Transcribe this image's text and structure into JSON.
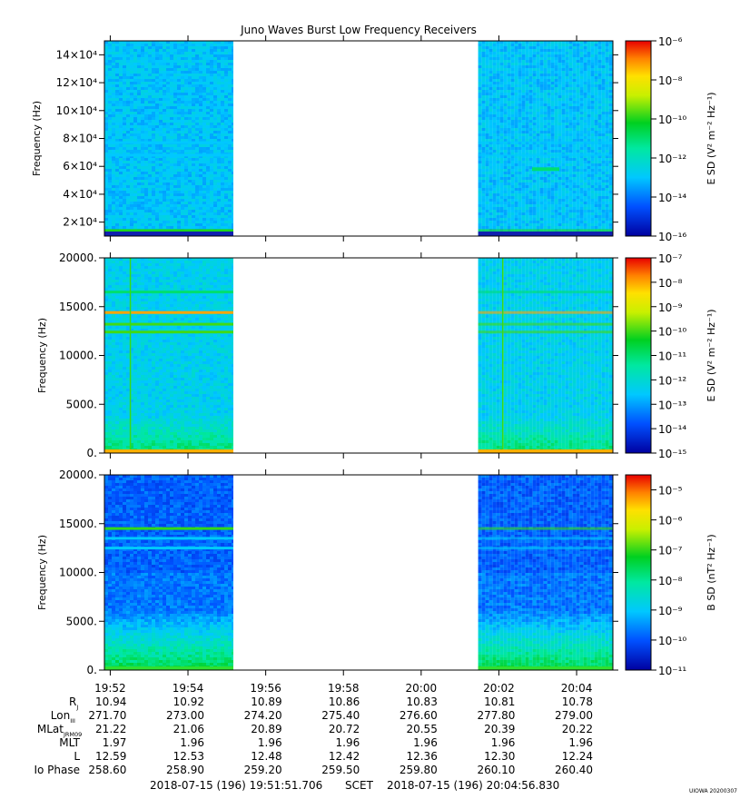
{
  "title": "Juno Waves Burst Low Frequency Receivers",
  "footer": {
    "start": "2018-07-15 (196) 19:51:51.706",
    "scet": "SCET",
    "end": "2018-07-15 (196) 20:04:56.830",
    "credit": "UIOWA 20200307"
  },
  "chart_data": [
    {
      "type": "heatmap",
      "panel": "top",
      "ylabel": "Frequency (Hz)",
      "yticks": [
        "14×10⁴",
        "12×10⁴",
        "10×10⁴",
        "8×10⁴",
        "6×10⁴",
        "4×10⁴",
        "2×10⁴"
      ],
      "ytick_values": [
        140000,
        120000,
        100000,
        80000,
        60000,
        40000,
        20000
      ],
      "ylim": [
        10000,
        150000
      ],
      "data_segments": [
        [
          "19:51:51",
          "19:55:10"
        ],
        [
          "20:01:28",
          "20:04:56"
        ]
      ],
      "features": [
        {
          "kind": "band",
          "freq": 14000,
          "level": "1e-10"
        },
        {
          "kind": "band",
          "freq": 68000,
          "level": "1e-13"
        },
        {
          "kind": "band",
          "freq": 77000,
          "level": "1e-13"
        },
        {
          "kind": "spot",
          "freq": 58000,
          "level": "1e-11"
        }
      ],
      "colorbar": {
        "label": "E SD (V² m⁻² Hz⁻¹)",
        "ticks": [
          "10⁻⁶",
          "10⁻⁸",
          "10⁻¹⁰",
          "10⁻¹²",
          "10⁻¹⁴",
          "10⁻¹⁶"
        ],
        "range": [
          -16,
          -6
        ]
      }
    },
    {
      "type": "heatmap",
      "panel": "middle",
      "ylabel": "Frequency (Hz)",
      "yticks": [
        "20000.",
        "15000.",
        "10000.",
        "5000.",
        "0."
      ],
      "ytick_values": [
        20000,
        15000,
        10000,
        5000,
        0
      ],
      "ylim": [
        0,
        20000
      ],
      "data_segments": [
        [
          "19:51:51",
          "19:55:10"
        ],
        [
          "20:01:28",
          "20:04:56"
        ]
      ],
      "features": [
        {
          "kind": "band",
          "freq": 14400,
          "level": "1e-8"
        },
        {
          "kind": "band",
          "freq": 13200,
          "level": "1e-10"
        },
        {
          "kind": "band",
          "freq": 12400,
          "level": "1e-10"
        },
        {
          "kind": "band",
          "freq": 16500,
          "level": "1e-11"
        },
        {
          "kind": "line_vertical",
          "time": "19:52:30"
        },
        {
          "kind": "line_vertical",
          "time": "20:02:05"
        }
      ],
      "colorbar": {
        "label": "E SD (V² m⁻² Hz⁻¹)",
        "ticks": [
          "10⁻⁷",
          "10⁻⁸",
          "10⁻⁹",
          "10⁻¹⁰",
          "10⁻¹¹",
          "10⁻¹²",
          "10⁻¹³",
          "10⁻¹⁴",
          "10⁻¹⁵"
        ],
        "range": [
          -15,
          -7
        ]
      }
    },
    {
      "type": "heatmap",
      "panel": "bottom",
      "ylabel": "Frequency (Hz)",
      "yticks": [
        "20000.",
        "15000.",
        "10000.",
        "5000.",
        "0."
      ],
      "ytick_values": [
        20000,
        15000,
        10000,
        5000,
        0
      ],
      "ylim": [
        0,
        20000
      ],
      "data_segments": [
        [
          "19:51:51",
          "19:55:10"
        ],
        [
          "20:01:28",
          "20:04:56"
        ]
      ],
      "features": [
        {
          "kind": "band",
          "freq": 14500,
          "level": "1e-7"
        },
        {
          "kind": "band",
          "freq": 13500,
          "level": "1e-9"
        },
        {
          "kind": "band",
          "freq": 12500,
          "level": "1e-9"
        }
      ],
      "colorbar": {
        "label": "B SD (nT² Hz⁻¹)",
        "ticks": [
          "10⁻⁵",
          "10⁻⁶",
          "10⁻⁷",
          "10⁻⁸",
          "10⁻⁹",
          "10⁻¹⁰",
          "10⁻¹¹"
        ],
        "range": [
          -11,
          -4.5
        ]
      }
    }
  ],
  "xaxis": {
    "ticks": [
      "19:52",
      "19:54",
      "19:56",
      "19:58",
      "20:00",
      "20:02",
      "20:04"
    ],
    "range": [
      "19:51:51",
      "20:04:56"
    ]
  },
  "ephemeris": {
    "labels": [
      "R",
      "Lon",
      "MLat",
      "MLT",
      "L",
      "Io Phase"
    ],
    "label_subs": [
      "J",
      "III",
      "JRM09",
      "",
      "",
      ""
    ],
    "rows": [
      [
        "10.94",
        "10.92",
        "10.89",
        "10.86",
        "10.83",
        "10.81",
        "10.78"
      ],
      [
        "271.70",
        "273.00",
        "274.20",
        "275.40",
        "276.60",
        "277.80",
        "279.00"
      ],
      [
        "21.22",
        "21.06",
        "20.89",
        "20.72",
        "20.55",
        "20.39",
        "20.22"
      ],
      [
        "1.97",
        "1.96",
        "1.96",
        "1.96",
        "1.96",
        "1.96",
        "1.96"
      ],
      [
        "12.59",
        "12.53",
        "12.48",
        "12.42",
        "12.36",
        "12.30",
        "12.24"
      ],
      [
        "258.60",
        "258.90",
        "259.20",
        "259.50",
        "259.80",
        "260.10",
        "260.40"
      ]
    ]
  }
}
